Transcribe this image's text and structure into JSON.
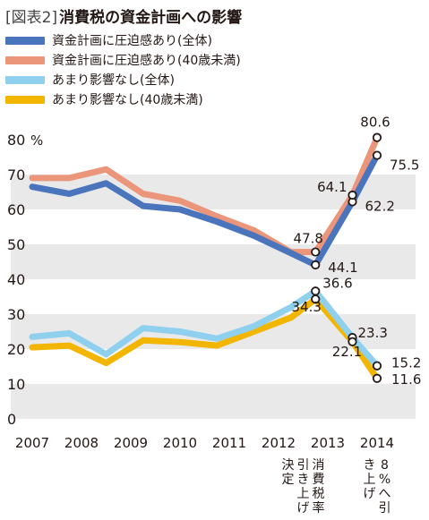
{
  "figure": {
    "label": "[図表2]",
    "title": "消費税の資金計画への影響"
  },
  "colors": {
    "blue": "#4a74bb",
    "salmon": "#eb957a",
    "light_blue": "#8fd0ef",
    "yellow": "#f2b500",
    "band": "#e9e9ea"
  },
  "chart_data": {
    "type": "line",
    "title": "消費税の資金計画への影響",
    "ylabel": "%",
    "ylim": [
      0,
      80
    ],
    "yticks": [
      0,
      10,
      20,
      30,
      40,
      50,
      60,
      70,
      80
    ],
    "xticks": [
      "2007",
      "2008",
      "2009",
      "2010",
      "2011",
      "2012",
      "2013",
      "2014"
    ],
    "legend_position": "top-left",
    "grid": "alternating horizontal bands",
    "annotations": [
      {
        "text": "消費税率引き上げ決定",
        "x": 2012.5
      },
      {
        "text": "8%へ引き上げ",
        "x": 2014.0
      }
    ],
    "series": [
      {
        "name": "資金計画に圧迫感あり(全体)",
        "color_key": "blue",
        "points": [
          [
            2007.0,
            66.5
          ],
          [
            2007.75,
            64.5
          ],
          [
            2008.5,
            67.5
          ],
          [
            2009.25,
            61.0
          ],
          [
            2010.0,
            60.0
          ],
          [
            2010.75,
            56.5
          ],
          [
            2011.5,
            52.5
          ],
          [
            2012.25,
            47.5
          ],
          [
            2012.75,
            44.1
          ],
          [
            2013.5,
            62.2
          ],
          [
            2014.0,
            75.5
          ]
        ],
        "labels": [
          {
            "text": "44.1",
            "x": 2012.75,
            "y": 44.1
          },
          {
            "text": "62.2",
            "x": 2013.5,
            "y": 62.2
          },
          {
            "text": "75.5",
            "x": 2014.0,
            "y": 75.5
          }
        ]
      },
      {
        "name": "資金計画に圧迫感あり(40歳未満)",
        "color_key": "salmon",
        "points": [
          [
            2007.0,
            69.0
          ],
          [
            2007.75,
            69.0
          ],
          [
            2008.5,
            71.5
          ],
          [
            2009.25,
            64.5
          ],
          [
            2010.0,
            62.5
          ],
          [
            2010.75,
            58.0
          ],
          [
            2011.5,
            54.0
          ],
          [
            2012.25,
            47.8
          ],
          [
            2012.75,
            47.8
          ],
          [
            2013.5,
            64.1
          ],
          [
            2014.0,
            80.6
          ]
        ],
        "labels": [
          {
            "text": "47.8",
            "x": 2012.75,
            "y": 47.8
          },
          {
            "text": "64.1",
            "x": 2013.5,
            "y": 64.1
          },
          {
            "text": "80.6",
            "x": 2014.0,
            "y": 80.6
          }
        ]
      },
      {
        "name": "あまり影響なし(全体)",
        "color_key": "light_blue",
        "points": [
          [
            2007.0,
            23.5
          ],
          [
            2007.75,
            24.5
          ],
          [
            2008.5,
            18.5
          ],
          [
            2009.25,
            26.0
          ],
          [
            2010.0,
            25.0
          ],
          [
            2010.75,
            23.0
          ],
          [
            2011.5,
            26.5
          ],
          [
            2012.25,
            32.0
          ],
          [
            2012.75,
            36.6
          ],
          [
            2013.5,
            23.3
          ],
          [
            2014.0,
            15.2
          ]
        ],
        "labels": [
          {
            "text": "36.6",
            "x": 2012.75,
            "y": 36.6
          },
          {
            "text": "23.3",
            "x": 2013.5,
            "y": 23.3
          },
          {
            "text": "15.2",
            "x": 2014.0,
            "y": 15.2
          }
        ]
      },
      {
        "name": "あまり影響なし(40歳未満)",
        "color_key": "yellow",
        "points": [
          [
            2007.0,
            20.5
          ],
          [
            2007.75,
            21.0
          ],
          [
            2008.5,
            16.0
          ],
          [
            2009.25,
            22.5
          ],
          [
            2010.0,
            22.0
          ],
          [
            2010.75,
            21.0
          ],
          [
            2011.5,
            25.0
          ],
          [
            2012.25,
            29.0
          ],
          [
            2012.75,
            34.3
          ],
          [
            2013.5,
            22.1
          ],
          [
            2014.0,
            11.6
          ]
        ],
        "labels": [
          {
            "text": "34.3",
            "x": 2012.75,
            "y": 34.3
          },
          {
            "text": "22.1",
            "x": 2013.5,
            "y": 22.1
          },
          {
            "text": "11.6",
            "x": 2014.0,
            "y": 11.6
          }
        ]
      }
    ]
  }
}
